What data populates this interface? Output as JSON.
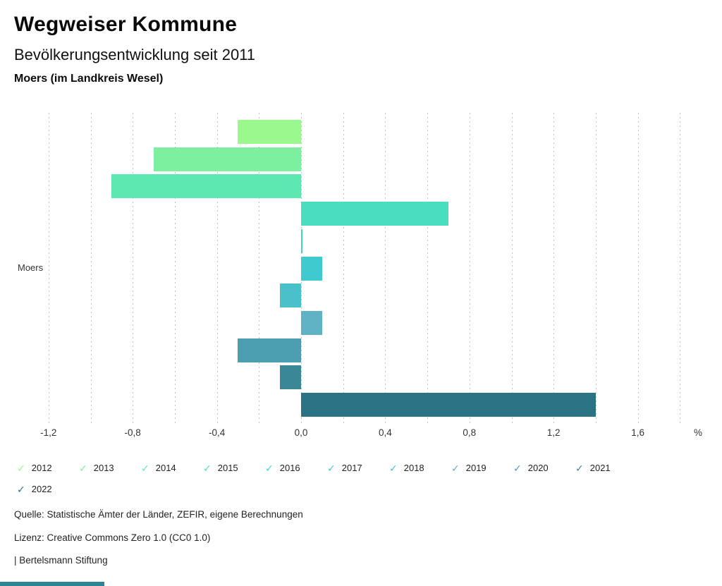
{
  "header": {
    "app_title": "Wegweiser Kommune",
    "chart_title": "Bevölkerungsentwicklung seit 2011",
    "location": "Moers (im Landkreis Wesel)"
  },
  "chart_data": {
    "type": "bar",
    "orientation": "horizontal",
    "title": "Bevölkerungsentwicklung seit 2011",
    "categories": [
      "Moers"
    ],
    "series": [
      {
        "name": "2012",
        "values": [
          -0.3
        ],
        "color": "#9bf88e"
      },
      {
        "name": "2013",
        "values": [
          -0.7
        ],
        "color": "#7cefa0"
      },
      {
        "name": "2014",
        "values": [
          -0.9
        ],
        "color": "#5ee7b0"
      },
      {
        "name": "2015",
        "values": [
          0.7
        ],
        "color": "#49dfbe"
      },
      {
        "name": "2016",
        "values": [
          0.0
        ],
        "color": "#3fd7c9"
      },
      {
        "name": "2017",
        "values": [
          0.1
        ],
        "color": "#3ecacf"
      },
      {
        "name": "2018",
        "values": [
          -0.1
        ],
        "color": "#48c1cb"
      },
      {
        "name": "2019",
        "values": [
          0.1
        ],
        "color": "#5eb2c4"
      },
      {
        "name": "2020",
        "values": [
          -0.3
        ],
        "color": "#4c9fb1"
      },
      {
        "name": "2021",
        "values": [
          -0.1
        ],
        "color": "#3a8795"
      },
      {
        "name": "2022",
        "values": [
          1.4
        ],
        "color": "#2b7383"
      }
    ],
    "xlabel": "%",
    "ylabel": "",
    "xlim": [
      -1.35,
      1.95
    ],
    "xticks": [
      {
        "value": -1.2,
        "label": "-1,2"
      },
      {
        "value": -0.8,
        "label": "-0,8"
      },
      {
        "value": -0.4,
        "label": "-0,4"
      },
      {
        "value": 0.0,
        "label": "0,0"
      },
      {
        "value": 0.4,
        "label": "0,4"
      },
      {
        "value": 0.8,
        "label": "0,8"
      },
      {
        "value": 1.2,
        "label": "1,2"
      },
      {
        "value": 1.6,
        "label": "1,6"
      }
    ],
    "unit_label": "%",
    "grid": true,
    "grid_step": 0.2,
    "grid_range": [
      -1.2,
      1.8
    ],
    "legend_position": "bottom",
    "legend_check_icon": "✓"
  },
  "footer": {
    "source_line": "Quelle: Statistische Ämter der Länder, ZEFIR, eigene Berechnungen",
    "license_line": "Lizenz: Creative Commons Zero 1.0 (CC0 1.0)",
    "brand_line": "| Bertelsmann Stiftung"
  },
  "accent": {
    "bottom_bar_color": "#2c8596"
  }
}
